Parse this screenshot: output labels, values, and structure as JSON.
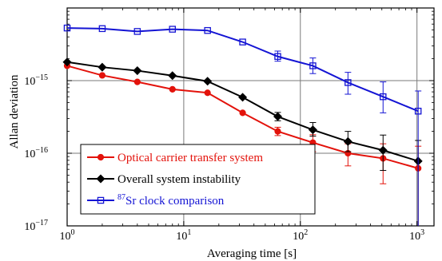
{
  "chart_data": {
    "type": "line",
    "title": "",
    "xlabel": "Averaging time [s]",
    "ylabel": "Allan deviation",
    "x_scale": "log",
    "y_scale": "log",
    "xlim": [
      1,
      1400
    ],
    "ylim": [
      1e-17,
      1e-14
    ],
    "grid": "major",
    "x_ticks": [
      {
        "value": 1,
        "label_base": "10",
        "label_exp": "0"
      },
      {
        "value": 10,
        "label_base": "10",
        "label_exp": "1"
      },
      {
        "value": 100,
        "label_base": "10",
        "label_exp": "2"
      },
      {
        "value": 1000,
        "label_base": "10",
        "label_exp": "3"
      }
    ],
    "y_ticks": [
      {
        "value": 1e-17,
        "label_base": "10",
        "label_exp": "−17"
      },
      {
        "value": 1e-16,
        "label_base": "10",
        "label_exp": "−16"
      },
      {
        "value": 1e-15,
        "label_base": "10",
        "label_exp": "−15"
      }
    ],
    "legend_position": "bottom-left",
    "series": [
      {
        "name": "Optical carrier transfer system",
        "color": "#e3120b",
        "marker": "filled-circle",
        "x": [
          1,
          2,
          4,
          8,
          16,
          32,
          64,
          128,
          256,
          512,
          1024
        ],
        "y": [
          1.6e-15,
          1.18e-15,
          9.6e-16,
          7.6e-16,
          6.8e-16,
          3.6e-16,
          2e-16,
          1.4e-16,
          1e-16,
          8.5e-17,
          6.2e-17
        ],
        "err_lower": [
          null,
          null,
          null,
          null,
          null,
          null,
          1.75e-16,
          1.05e-16,
          6.7e-17,
          3.8e-17,
          1e-17
        ],
        "err_upper": [
          null,
          null,
          null,
          null,
          null,
          null,
          2.28e-16,
          1.8e-16,
          1.35e-16,
          1.35e-16,
          1.25e-16
        ]
      },
      {
        "name": "Overall system instability",
        "color": "#000000",
        "marker": "filled-diamond",
        "x": [
          1,
          2,
          4,
          8,
          16,
          32,
          64,
          128,
          256,
          512,
          1024
        ],
        "y": [
          1.8e-15,
          1.53e-15,
          1.37e-15,
          1.17e-15,
          9.8e-16,
          5.9e-16,
          3.2e-16,
          2.1e-16,
          1.45e-16,
          1.1e-16,
          7.8e-17
        ],
        "err_lower": [
          null,
          null,
          null,
          null,
          null,
          null,
          2.8e-16,
          1.72e-16,
          1.05e-16,
          5.8e-17,
          1e-17
        ],
        "err_upper": [
          null,
          null,
          null,
          null,
          null,
          null,
          3.65e-16,
          2.65e-16,
          2e-16,
          1.78e-16,
          1.5e-16
        ]
      },
      {
        "name": "⁸⁷Sr clock comparison",
        "color": "#1414d4",
        "marker": "open-square",
        "x": [
          1,
          2,
          4,
          8,
          16,
          32,
          64,
          128,
          256,
          512,
          1024
        ],
        "y": [
          5.3e-15,
          5.2e-15,
          4.75e-15,
          5.1e-15,
          4.9e-15,
          3.4e-15,
          2.15e-15,
          1.6e-15,
          9.4e-16,
          6e-16,
          3.8e-16
        ],
        "err_lower": [
          null,
          null,
          null,
          null,
          null,
          null,
          1.85e-15,
          1.25e-15,
          6.5e-16,
          3.6e-16,
          1e-17
        ],
        "err_upper": [
          null,
          null,
          null,
          null,
          null,
          null,
          2.55e-15,
          2.05e-15,
          1.3e-15,
          9.6e-16,
          7.2e-16
        ]
      }
    ],
    "legend": {
      "entries": [
        {
          "label": "Optical carrier transfer system",
          "text_color": "#e3120b",
          "line_color": "#e3120b",
          "marker": "filled-circle"
        },
        {
          "label": "Overall system instability",
          "text_color": "#000000",
          "line_color": "#000000",
          "marker": "filled-diamond"
        },
        {
          "label_sup": "87",
          "label": "Sr clock comparison",
          "text_color": "#1414d4",
          "line_color": "#1414d4",
          "marker": "open-square"
        }
      ]
    }
  }
}
